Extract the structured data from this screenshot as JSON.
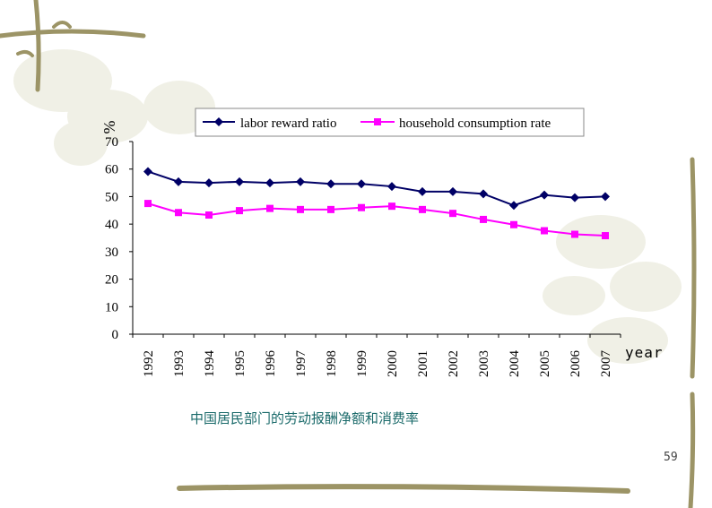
{
  "slide": {
    "caption": "中国居民部门的劳动报酬净额和消费率",
    "page_number": "59"
  },
  "chart_data": {
    "type": "line",
    "title": "",
    "ylabel": "%",
    "xlabel": "year",
    "ylim": [
      0,
      70
    ],
    "yticks": [
      0,
      10,
      20,
      30,
      40,
      50,
      60,
      70
    ],
    "categories": [
      "1992",
      "1993",
      "1994",
      "1995",
      "1996",
      "1997",
      "1998",
      "1999",
      "2000",
      "2001",
      "2002",
      "2003",
      "2004",
      "2005",
      "2006",
      "2007"
    ],
    "legend_position": "top",
    "series": [
      {
        "name": "labor reward ratio",
        "color": "#000066",
        "marker": "diamond",
        "values": [
          59.1,
          55.4,
          55.0,
          55.4,
          55.0,
          55.4,
          54.6,
          54.6,
          53.7,
          51.8,
          51.8,
          51.0,
          46.8,
          50.6,
          49.6,
          50.0
        ]
      },
      {
        "name": "household consumption rate",
        "color": "#ff00ff",
        "marker": "square",
        "values": [
          47.5,
          44.2,
          43.3,
          44.9,
          45.7,
          45.3,
          45.3,
          46.0,
          46.5,
          45.3,
          43.9,
          41.7,
          39.8,
          37.6,
          36.3,
          35.8
        ]
      }
    ]
  }
}
